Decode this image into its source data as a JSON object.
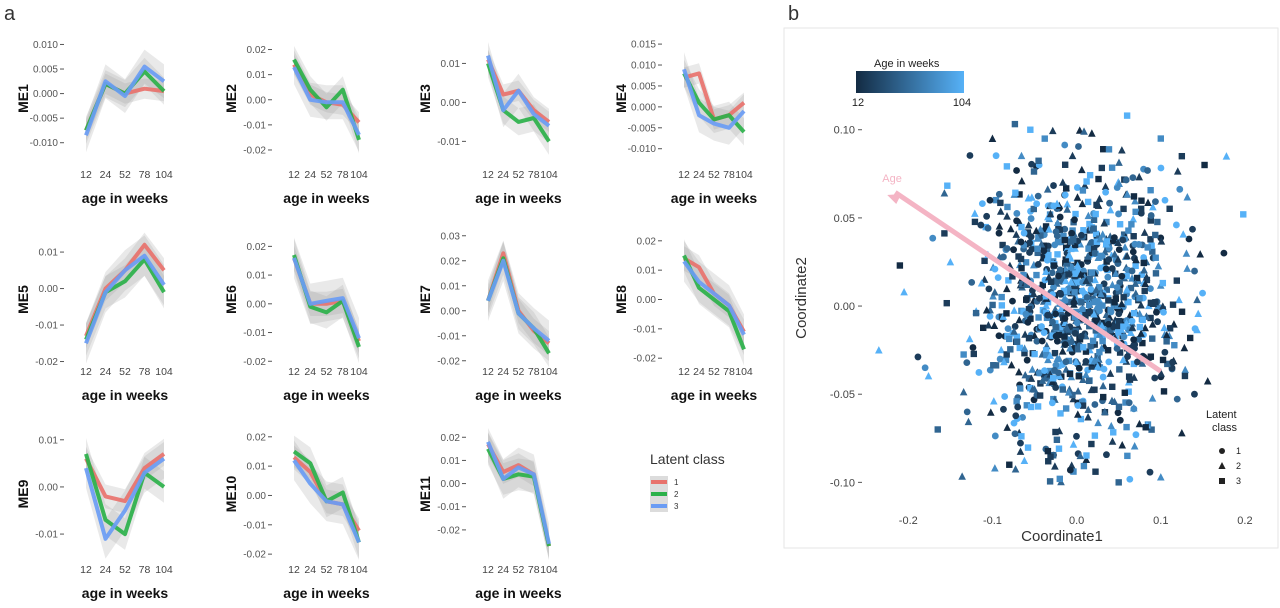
{
  "panel_a_label": "a",
  "panel_b_label": "b",
  "colors": {
    "class_1": "#E8726C",
    "class_2": "#2BB14A",
    "class_3": "#6A9CF4",
    "ribbon": "#9a9a9a",
    "arrow": "#F4B4C4",
    "age_low": "#132B43",
    "age_high": "#56B1F7"
  },
  "legend_a": {
    "title": "Latent class",
    "items": [
      "1",
      "2",
      "3"
    ]
  },
  "legend_b_age": {
    "title": "Age in weeks",
    "min_label": "12",
    "max_label": "104"
  },
  "legend_b_shape": {
    "title_line1": "Latent",
    "title_line2": "class",
    "items": [
      "1",
      "2",
      "3"
    ]
  },
  "chart_data": [
    {
      "type": "line",
      "title": "",
      "ylabel": "ME1",
      "xlabel": "age in weeks",
      "categories": [
        "12",
        "24",
        "52",
        "78",
        "104"
      ],
      "ylim": [
        -0.0125,
        0.0105
      ],
      "yticks": [
        "-0.010",
        "-0.005",
        "0.000",
        "0.005",
        "0.010"
      ],
      "ytick_values": [
        -0.01,
        -0.005,
        0,
        0.005,
        0.01
      ],
      "series": [
        {
          "name": "1",
          "values": [
            -0.0075,
            0.002,
            0.0,
            0.001,
            0.0005
          ]
        },
        {
          "name": "2",
          "values": [
            -0.0075,
            0.002,
            0.0,
            0.0045,
            0.0005
          ]
        },
        {
          "name": "3",
          "values": [
            -0.0085,
            0.0025,
            -0.0005,
            0.0055,
            0.0025
          ]
        }
      ]
    },
    {
      "type": "line",
      "title": "",
      "ylabel": "ME2",
      "xlabel": "age in weeks",
      "categories": [
        "12",
        "24",
        "52",
        "78",
        "104"
      ],
      "ylim": [
        -0.022,
        0.023
      ],
      "yticks": [
        "-0.02",
        "-0.01",
        "0.00",
        "0.01",
        "0.02"
      ],
      "ytick_values": [
        -0.02,
        -0.01,
        0,
        0.01,
        0.02
      ],
      "series": [
        {
          "name": "1",
          "values": [
            0.014,
            0.002,
            -0.001,
            -0.002,
            -0.009
          ]
        },
        {
          "name": "2",
          "values": [
            0.016,
            0.004,
            -0.003,
            0.004,
            -0.016
          ]
        },
        {
          "name": "3",
          "values": [
            0.013,
            0.0,
            -0.001,
            -0.001,
            -0.014
          ]
        }
      ]
    },
    {
      "type": "line",
      "title": "",
      "ylabel": "ME3",
      "xlabel": "age in weeks",
      "categories": [
        "12",
        "24",
        "52",
        "78",
        "104"
      ],
      "ylim": [
        -0.0135,
        0.0155
      ],
      "yticks": [
        "-0.01",
        "0.00",
        "0.01"
      ],
      "ytick_values": [
        -0.01,
        0,
        0.01
      ],
      "series": [
        {
          "name": "1",
          "values": [
            0.011,
            0.002,
            0.003,
            -0.002,
            -0.005
          ]
        },
        {
          "name": "2",
          "values": [
            0.01,
            -0.002,
            -0.005,
            -0.004,
            -0.01
          ]
        },
        {
          "name": "3",
          "values": [
            0.012,
            -0.002,
            0.003,
            -0.003,
            -0.006
          ]
        }
      ]
    },
    {
      "type": "line",
      "title": "",
      "ylabel": "ME4",
      "xlabel": "age in weeks",
      "categories": [
        "12",
        "24",
        "52",
        "78",
        "104"
      ],
      "ylim": [
        -0.0115,
        0.0155
      ],
      "yticks": [
        "-0.010",
        "-0.005",
        "0.000",
        "0.005",
        "0.010",
        "0.015"
      ],
      "ytick_values": [
        -0.01,
        -0.005,
        0,
        0.005,
        0.01,
        0.015
      ],
      "series": [
        {
          "name": "1",
          "values": [
            0.007,
            0.008,
            -0.003,
            -0.002,
            0.001
          ]
        },
        {
          "name": "2",
          "values": [
            0.008,
            0.001,
            -0.003,
            -0.002,
            -0.006
          ]
        },
        {
          "name": "3",
          "values": [
            0.009,
            -0.002,
            -0.004,
            -0.005,
            -0.001
          ]
        }
      ]
    },
    {
      "type": "line",
      "title": "",
      "ylabel": "ME5",
      "xlabel": "age in weeks",
      "categories": [
        "12",
        "24",
        "52",
        "78",
        "104"
      ],
      "ylim": [
        -0.0215,
        0.0155
      ],
      "yticks": [
        "-0.02",
        "-0.01",
        "0.00",
        "0.01"
      ],
      "ytick_values": [
        -0.02,
        -0.01,
        0,
        0.01
      ],
      "series": [
        {
          "name": "1",
          "values": [
            -0.013,
            0.0,
            0.005,
            0.012,
            0.005
          ]
        },
        {
          "name": "2",
          "values": [
            -0.014,
            -0.001,
            0.002,
            0.008,
            -0.001
          ]
        },
        {
          "name": "3",
          "values": [
            -0.015,
            -0.001,
            0.005,
            0.009,
            0.001
          ]
        }
      ]
    },
    {
      "type": "line",
      "title": "",
      "ylabel": "ME6",
      "xlabel": "age in weeks",
      "categories": [
        "12",
        "24",
        "52",
        "78",
        "104"
      ],
      "ylim": [
        -0.022,
        0.025
      ],
      "yticks": [
        "-0.02",
        "-0.01",
        "0.00",
        "0.01",
        "0.02"
      ],
      "ytick_values": [
        -0.02,
        -0.01,
        0,
        0.01,
        0.02
      ],
      "series": [
        {
          "name": "1",
          "values": [
            0.016,
            0.0,
            0.0,
            0.001,
            -0.013
          ]
        },
        {
          "name": "2",
          "values": [
            0.017,
            -0.001,
            -0.003,
            0.001,
            -0.015
          ]
        },
        {
          "name": "3",
          "values": [
            0.016,
            0.0,
            0.001,
            0.002,
            -0.012
          ]
        }
      ]
    },
    {
      "type": "line",
      "title": "",
      "ylabel": "ME7",
      "xlabel": "age in weeks",
      "categories": [
        "12",
        "24",
        "52",
        "78",
        "104"
      ],
      "ylim": [
        -0.0225,
        0.0315
      ],
      "yticks": [
        "-0.02",
        "-0.01",
        "0.00",
        "0.01",
        "0.02",
        "0.03"
      ],
      "ytick_values": [
        -0.02,
        -0.01,
        0,
        0.01,
        0.02,
        0.03
      ],
      "series": [
        {
          "name": "1",
          "values": [
            0.004,
            0.023,
            0.0,
            -0.008,
            -0.013
          ]
        },
        {
          "name": "2",
          "values": [
            0.004,
            0.021,
            -0.001,
            -0.007,
            -0.017
          ]
        },
        {
          "name": "3",
          "values": [
            0.004,
            0.02,
            -0.001,
            -0.007,
            -0.012
          ]
        }
      ]
    },
    {
      "type": "line",
      "title": "",
      "ylabel": "ME8",
      "xlabel": "age in weeks",
      "categories": [
        "12",
        "24",
        "52",
        "78",
        "104"
      ],
      "ylim": [
        -0.023,
        0.023
      ],
      "yticks": [
        "-0.02",
        "-0.01",
        "0.00",
        "0.01",
        "0.02"
      ],
      "ytick_values": [
        -0.02,
        -0.01,
        0,
        0.01,
        0.02
      ],
      "series": [
        {
          "name": "1",
          "values": [
            0.014,
            0.011,
            0.002,
            -0.002,
            -0.011
          ]
        },
        {
          "name": "2",
          "values": [
            0.015,
            0.004,
            0.0,
            -0.004,
            -0.017
          ]
        },
        {
          "name": "3",
          "values": [
            0.013,
            0.006,
            0.002,
            -0.002,
            -0.012
          ]
        }
      ]
    },
    {
      "type": "line",
      "title": "",
      "ylabel": "ME9",
      "xlabel": "age in weeks",
      "categories": [
        "12",
        "24",
        "52",
        "78",
        "104"
      ],
      "ylim": [
        -0.0155,
        0.0125
      ],
      "yticks": [
        "-0.01",
        "0.00",
        "0.01"
      ],
      "ytick_values": [
        -0.01,
        0,
        0.01
      ],
      "series": [
        {
          "name": "1",
          "values": [
            0.006,
            -0.002,
            -0.003,
            0.004,
            0.007
          ]
        },
        {
          "name": "2",
          "values": [
            0.007,
            -0.007,
            -0.01,
            0.003,
            0.0
          ]
        },
        {
          "name": "3",
          "values": [
            0.004,
            -0.011,
            -0.005,
            0.003,
            0.006
          ]
        }
      ]
    },
    {
      "type": "line",
      "title": "",
      "ylabel": "ME10",
      "xlabel": "age in weeks",
      "categories": [
        "12",
        "24",
        "52",
        "78",
        "104"
      ],
      "ylim": [
        -0.022,
        0.023
      ],
      "yticks": [
        "-0.02",
        "-0.01",
        "0.00",
        "0.01",
        "0.02"
      ],
      "ytick_values": [
        -0.02,
        -0.01,
        0,
        0.01,
        0.02
      ],
      "series": [
        {
          "name": "1",
          "values": [
            0.013,
            0.008,
            -0.002,
            -0.003,
            -0.012
          ]
        },
        {
          "name": "2",
          "values": [
            0.015,
            0.011,
            -0.002,
            0.001,
            -0.016
          ]
        },
        {
          "name": "3",
          "values": [
            0.012,
            0.004,
            -0.002,
            -0.003,
            -0.016
          ]
        }
      ]
    },
    {
      "type": "line",
      "title": "",
      "ylabel": "ME11",
      "xlabel": "age in weeks",
      "categories": [
        "12",
        "24",
        "52",
        "78",
        "104"
      ],
      "ylim": [
        -0.033,
        0.024
      ],
      "yticks": [
        "-0.02",
        "-0.01",
        "0.00",
        "0.01",
        "0.02"
      ],
      "ytick_values": [
        -0.02,
        -0.01,
        0,
        0.01,
        0.02
      ],
      "series": [
        {
          "name": "1",
          "values": [
            0.017,
            0.005,
            0.008,
            0.004,
            -0.027
          ]
        },
        {
          "name": "2",
          "values": [
            0.015,
            0.002,
            0.004,
            0.003,
            -0.027
          ]
        },
        {
          "name": "3",
          "values": [
            0.018,
            0.002,
            0.007,
            0.004,
            -0.026
          ]
        }
      ]
    },
    {
      "type": "scatter",
      "title": "",
      "xlabel": "Coordinate1",
      "ylabel": "Coordinate2",
      "xlim": [
        -0.255,
        0.225
      ],
      "ylim": [
        -0.11,
        0.118
      ],
      "xticks": [
        "-0.2",
        "-0.1",
        "0.0",
        "0.1",
        "0.2"
      ],
      "xtick_values": [
        -0.2,
        -0.1,
        0,
        0.1,
        0.2
      ],
      "yticks": [
        "-0.10",
        "-0.05",
        "0.00",
        "0.05",
        "0.10"
      ],
      "ytick_values": [
        -0.1,
        -0.05,
        0,
        0.05,
        0.1
      ],
      "color_by": "Age in weeks",
      "shape_by": "Latent class",
      "arrow": {
        "label": "Age",
        "from": [
          0.1,
          -0.037
        ],
        "to": [
          -0.225,
          0.063
        ]
      },
      "points_summary": {
        "center": [
          0.0,
          0.0
        ],
        "spread_x": 0.06,
        "spread_y": 0.038
      },
      "outliers": [
        {
          "x": -0.235,
          "y": -0.025,
          "shape": 2,
          "age": 104
        },
        {
          "x": -0.205,
          "y": 0.008,
          "shape": 2,
          "age": 104
        },
        {
          "x": -0.165,
          "y": -0.07,
          "shape": 3,
          "age": 52
        },
        {
          "x": 0.198,
          "y": 0.052,
          "shape": 3,
          "age": 104
        },
        {
          "x": -0.21,
          "y": 0.023,
          "shape": 3,
          "age": 12
        },
        {
          "x": 0.1,
          "y": -0.097,
          "shape": 2,
          "age": 78
        },
        {
          "x": 0.178,
          "y": 0.085,
          "shape": 2,
          "age": 104
        },
        {
          "x": 0.1,
          "y": 0.095,
          "shape": 3,
          "age": 78
        },
        {
          "x": 0.152,
          "y": 0.08,
          "shape": 3,
          "age": 12
        },
        {
          "x": 0.06,
          "y": 0.108,
          "shape": 3,
          "age": 104
        },
        {
          "x": 0.125,
          "y": 0.085,
          "shape": 3,
          "age": 24
        },
        {
          "x": -0.055,
          "y": 0.1,
          "shape": 3,
          "age": 104
        },
        {
          "x": -0.1,
          "y": 0.095,
          "shape": 2,
          "age": 12
        },
        {
          "x": 0.175,
          "y": 0.03,
          "shape": 1,
          "age": 12
        },
        {
          "x": 0.125,
          "y": -0.072,
          "shape": 2,
          "age": 12
        },
        {
          "x": 0.05,
          "y": -0.1,
          "shape": 3,
          "age": 52
        },
        {
          "x": -0.02,
          "y": -0.098,
          "shape": 3,
          "age": 78
        },
        {
          "x": -0.08,
          "y": -0.09,
          "shape": 3,
          "age": 12
        },
        {
          "x": -0.18,
          "y": -0.035,
          "shape": 1,
          "age": 78
        },
        {
          "x": -0.15,
          "y": 0.025,
          "shape": 2,
          "age": 104
        },
        {
          "x": 0.105,
          "y": 0.06,
          "shape": 1,
          "age": 104
        },
        {
          "x": 0.14,
          "y": -0.05,
          "shape": 1,
          "age": 24
        },
        {
          "x": -0.13,
          "y": -0.06,
          "shape": 1,
          "age": 52
        }
      ]
    }
  ]
}
